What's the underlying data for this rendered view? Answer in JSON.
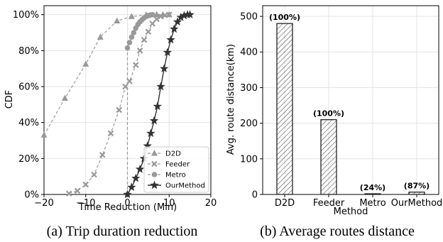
{
  "chart_data": [
    {
      "type": "line",
      "caption": "(a) Trip duration reduction",
      "xlabel": "Time Reduction (Min)",
      "ylabel": "CDF",
      "xlim": [
        -20,
        20
      ],
      "ylim": [
        0,
        1.05
      ],
      "xticks": [
        "−20",
        "−10",
        "0",
        "10",
        "20"
      ],
      "xtick_values": [
        -20,
        -10,
        0,
        10,
        20
      ],
      "yticks": [
        "0%",
        "20%",
        "40%",
        "60%",
        "80%",
        "100%"
      ],
      "ytick_values": [
        0,
        0.2,
        0.4,
        0.6,
        0.8,
        1.0
      ],
      "grid": true,
      "legend_position": "lower-right",
      "series": [
        {
          "name": "D2D",
          "marker": "triangle",
          "style": "dashed",
          "color": "#999999",
          "x": [
            -20,
            -15,
            -10,
            -6.5,
            -2.5,
            1,
            4.5,
            7,
            8.5,
            10
          ],
          "y": [
            0.33,
            0.535,
            0.725,
            0.875,
            0.965,
            0.99,
            0.998,
            1.0,
            1.0,
            1.0
          ]
        },
        {
          "name": "Feeder",
          "marker": "x",
          "style": "dashed",
          "color": "#999999",
          "x": [
            -14,
            -12,
            -10,
            -8,
            -6,
            -4,
            -2,
            -0.5,
            0.5,
            2,
            3,
            4,
            5,
            6,
            7,
            8,
            9,
            10
          ],
          "y": [
            0.005,
            0.02,
            0.055,
            0.11,
            0.22,
            0.34,
            0.47,
            0.6,
            0.63,
            0.72,
            0.8,
            0.86,
            0.905,
            0.95,
            0.975,
            0.99,
            0.997,
            1.0
          ]
        },
        {
          "name": "Metro",
          "marker": "circle",
          "style": "dashed",
          "color": "#999999",
          "x": [
            0,
            0,
            0.5,
            1,
            1.5,
            2,
            2.5,
            3,
            3.5,
            4,
            4.5,
            5,
            5.5,
            6
          ],
          "y": [
            0.0,
            0.815,
            0.845,
            0.875,
            0.9,
            0.925,
            0.945,
            0.96,
            0.972,
            0.982,
            0.99,
            0.995,
            0.998,
            1.0
          ]
        },
        {
          "name": "OurMethod",
          "marker": "star",
          "style": "solid",
          "color": "#333333",
          "x": [
            0,
            1,
            2,
            3,
            4,
            4.8,
            5.6,
            6.4,
            7.2,
            8,
            8.8,
            9.6,
            10.4,
            11.2,
            12,
            12.8,
            13.6,
            14.4,
            15
          ],
          "y": [
            0.0,
            0.04,
            0.09,
            0.14,
            0.2,
            0.27,
            0.34,
            0.41,
            0.49,
            0.6,
            0.7,
            0.79,
            0.86,
            0.92,
            0.96,
            0.985,
            0.995,
            1.0,
            1.0
          ]
        }
      ]
    },
    {
      "type": "bar",
      "caption": "(b) Average routes distance",
      "xlabel": "Method",
      "ylabel": "Avg. route distance(km)",
      "categories": [
        "D2D",
        "Feeder",
        "Metro",
        "OurMethod"
      ],
      "values": [
        480,
        210,
        1.2,
        6.5
      ],
      "data_labels": [
        "(100%)",
        "(100%)",
        "(24%)",
        "(87%)"
      ],
      "ylim": [
        0,
        530
      ],
      "yticks": [
        "0",
        "100",
        "200",
        "300",
        "400",
        "500"
      ],
      "ytick_values": [
        0,
        100,
        200,
        300,
        400,
        500
      ],
      "grid": true,
      "bar_hatch": "diagonal"
    }
  ]
}
